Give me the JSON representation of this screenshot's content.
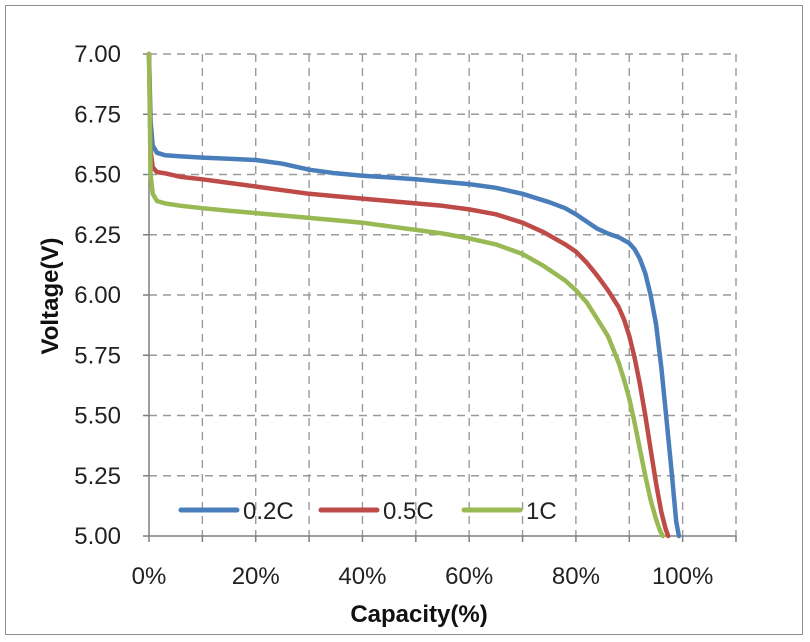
{
  "chart_data": {
    "type": "line",
    "xlabel": "Capacity(%)",
    "ylabel": "Voltage(V)",
    "xlim": [
      0,
      110
    ],
    "ylim": [
      5.0,
      7.0
    ],
    "x_ticks": [
      0,
      20,
      40,
      60,
      80,
      100
    ],
    "x_tick_labels": [
      "0%",
      "20%",
      "40%",
      "60%",
      "80%",
      "100%"
    ],
    "y_ticks": [
      5.0,
      5.25,
      5.5,
      5.75,
      6.0,
      6.25,
      6.5,
      6.75,
      7.0
    ],
    "y_tick_labels": [
      "5.00",
      "5.25",
      "5.50",
      "5.75",
      "6.00",
      "6.25",
      "6.50",
      "6.75",
      "7.00"
    ],
    "grid": "dashed",
    "legend_position": "bottom-left",
    "series": [
      {
        "name": "0.2C",
        "color": "#4a7ebb",
        "x": [
          0,
          0.3,
          0.7,
          1.5,
          3,
          6,
          10,
          15,
          20,
          25,
          30,
          35,
          40,
          45,
          50,
          55,
          60,
          65,
          70,
          75,
          78,
          80,
          82,
          84,
          86,
          88,
          90,
          91,
          92,
          93,
          94,
          95,
          96,
          97,
          98,
          98.8,
          99.3
        ],
        "y": [
          7.0,
          6.72,
          6.62,
          6.59,
          6.58,
          6.575,
          6.57,
          6.565,
          6.56,
          6.545,
          6.52,
          6.505,
          6.495,
          6.488,
          6.48,
          6.47,
          6.46,
          6.445,
          6.42,
          6.385,
          6.36,
          6.335,
          6.305,
          6.275,
          6.255,
          6.24,
          6.215,
          6.19,
          6.15,
          6.09,
          6.0,
          5.88,
          5.7,
          5.48,
          5.25,
          5.06,
          5.0
        ]
      },
      {
        "name": "0.5C",
        "color": "#be4b48",
        "x": [
          0,
          0.3,
          0.7,
          1.5,
          3,
          6,
          10,
          15,
          20,
          25,
          30,
          35,
          40,
          45,
          50,
          55,
          60,
          65,
          70,
          74,
          78,
          80,
          82,
          84,
          86,
          88,
          89,
          90,
          91,
          92,
          93,
          94,
          95,
          96,
          96.8,
          97.3
        ],
        "y": [
          7.0,
          6.6,
          6.53,
          6.51,
          6.505,
          6.49,
          6.48,
          6.465,
          6.45,
          6.435,
          6.42,
          6.41,
          6.4,
          6.39,
          6.38,
          6.37,
          6.355,
          6.335,
          6.3,
          6.26,
          6.21,
          6.18,
          6.135,
          6.08,
          6.02,
          5.95,
          5.9,
          5.83,
          5.74,
          5.63,
          5.5,
          5.36,
          5.22,
          5.1,
          5.03,
          5.0
        ]
      },
      {
        "name": "1C",
        "color": "#98b954",
        "x": [
          0,
          0.3,
          0.7,
          1.5,
          3,
          6,
          10,
          15,
          20,
          25,
          30,
          35,
          40,
          45,
          50,
          55,
          60,
          65,
          70,
          74,
          78,
          80,
          82,
          84,
          86,
          88,
          89,
          90,
          91,
          92,
          93,
          94,
          95,
          95.8,
          96.3
        ],
        "y": [
          7.0,
          6.5,
          6.42,
          6.39,
          6.38,
          6.37,
          6.36,
          6.35,
          6.34,
          6.33,
          6.32,
          6.31,
          6.3,
          6.285,
          6.27,
          6.255,
          6.235,
          6.21,
          6.17,
          6.12,
          6.06,
          6.02,
          5.97,
          5.9,
          5.83,
          5.72,
          5.65,
          5.57,
          5.47,
          5.36,
          5.25,
          5.15,
          5.07,
          5.02,
          5.0
        ]
      }
    ]
  }
}
